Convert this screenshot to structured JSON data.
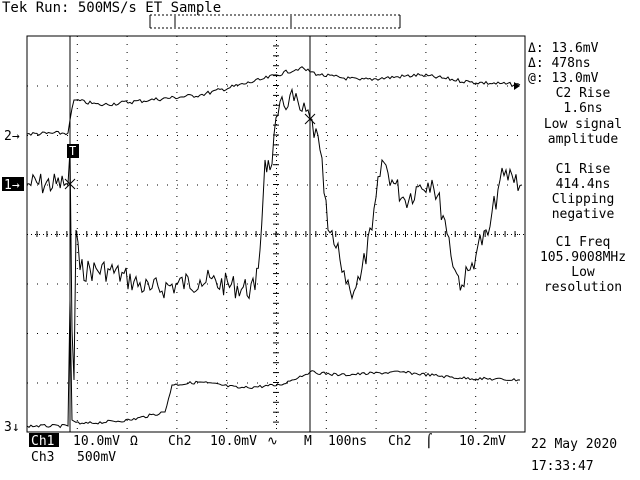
{
  "header": {
    "status": "Tek Run: 500MS/s ET Sample",
    "trigger_marker": "T"
  },
  "measurements": {
    "delta_v": "Δ: 13.6mV",
    "delta_t": "Δ: 478ns",
    "at_v": "@: 13.0mV",
    "items": [
      {
        "name": "C2 Rise",
        "value": "1.6ns",
        "note": [
          "Low signal",
          "amplitude"
        ]
      },
      {
        "name": "C1 Rise",
        "value": "414.4ns",
        "note": [
          "Clipping",
          "negative"
        ]
      },
      {
        "name": "C1 Freq",
        "value": "105.9008MHz",
        "note": [
          "Low",
          "resolution"
        ]
      }
    ]
  },
  "channel_markers": {
    "ch2": "2→",
    "ch1": "1→",
    "ch3": "3↓"
  },
  "footer": {
    "ch1_label": "Ch1",
    "ch1_scale": "10.0mV",
    "ch1_coupling": "Ω",
    "ch2_label": "Ch2",
    "ch2_scale": "10.0mV",
    "ch2_coupling": "∿",
    "timebase_label": "M",
    "timebase_value": "100ns",
    "trigger_source": "Ch2",
    "trigger_slope": "⌠",
    "trigger_level": "10.2mV",
    "ch3_label": "Ch3",
    "ch3_scale": "500mV",
    "date": "22 May 2020",
    "time": "17:33:47"
  },
  "colors": {
    "background": "#ffffff",
    "trace": "#000000",
    "graticule": "#000000"
  }
}
